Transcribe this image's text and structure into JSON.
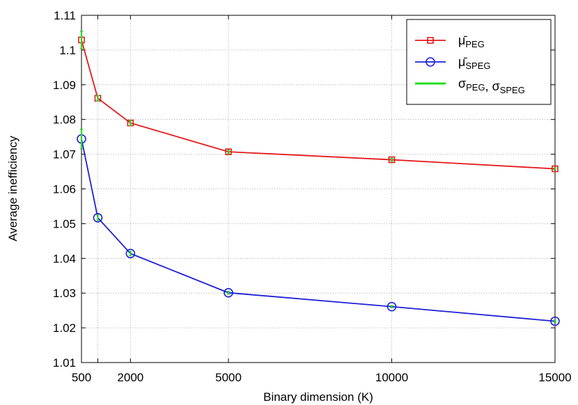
{
  "chart_data": {
    "type": "line",
    "xlabel": "Binary dimension (K)",
    "ylabel": "Average inefficiency",
    "xlim": [
      500,
      15000
    ],
    "ylim": [
      1.01,
      1.11
    ],
    "xticks": [
      500,
      2000,
      5000,
      10000,
      15000
    ],
    "xtick_labels": [
      "500",
      "2000",
      "5000",
      "10000",
      "15000"
    ],
    "yticks": [
      1.01,
      1.02,
      1.03,
      1.04,
      1.05,
      1.06,
      1.07,
      1.08,
      1.09,
      1.1,
      1.11
    ],
    "ytick_labels": [
      "1.01",
      "1.02",
      "1.03",
      "1.04",
      "1.05",
      "1.06",
      "1.07",
      "1.08",
      "1.09",
      "1.1",
      "1.11"
    ],
    "x_grid_lines": [
      500,
      1000,
      2000,
      5000,
      10000,
      15000
    ],
    "grid": true,
    "legend_position": "top-right",
    "x": [
      500,
      1000,
      2000,
      5000,
      10000,
      15000
    ],
    "series": [
      {
        "name": "μ̄_PEG",
        "legend_main": "μ̄",
        "legend_sub": "PEG",
        "color": "#e41a1c",
        "marker": "square",
        "values": [
          1.1029,
          1.0861,
          1.079,
          1.0707,
          1.0684,
          1.0658
        ],
        "std": [
          0.0025,
          0.0008,
          0.0007,
          0.0005,
          0.0004,
          0.0003
        ]
      },
      {
        "name": "μ̄_SPEG",
        "legend_main": "μ̄",
        "legend_sub": "SPEG",
        "color": "#1f1fd6",
        "marker": "circle",
        "values": [
          1.0744,
          1.0517,
          1.0414,
          1.0301,
          1.0261,
          1.0219
        ],
        "std": [
          0.0028,
          0.0008,
          0.0006,
          0.0004,
          0.0003,
          0.0003
        ]
      }
    ],
    "std_legend": {
      "name": "σ_PEG, σ_SPEG",
      "parts": [
        {
          "main": "σ",
          "sub": "PEG"
        },
        {
          "main": ", σ",
          "sub": "SPEG"
        }
      ],
      "color": "#22dd22"
    }
  }
}
